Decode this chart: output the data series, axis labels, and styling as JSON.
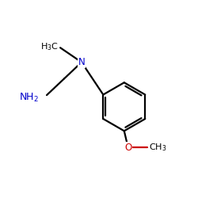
{
  "background_color": "#ffffff",
  "bond_color": "#000000",
  "N_color": "#0000cc",
  "O_color": "#cc0000",
  "C_color": "#000000",
  "figsize": [
    2.5,
    2.5
  ],
  "dpi": 100,
  "xlim": [
    0,
    10
  ],
  "ylim": [
    0,
    10
  ],
  "lw": 1.6
}
